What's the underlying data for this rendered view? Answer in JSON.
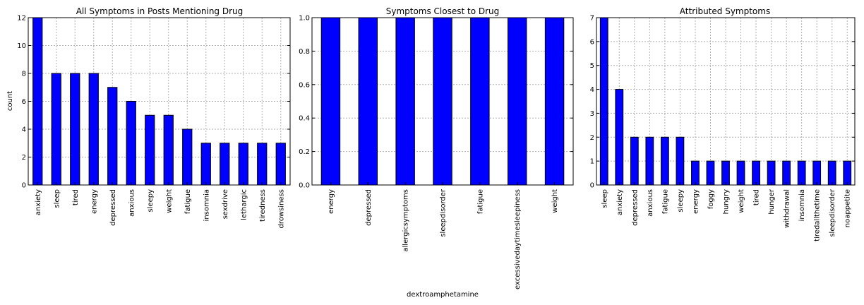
{
  "chart_data": [
    {
      "type": "bar",
      "title": "All Symptoms in Posts Mentioning Drug",
      "xlabel": "",
      "ylabel": "count",
      "ylim": [
        0,
        12
      ],
      "yticks": [
        0,
        2,
        4,
        6,
        8,
        10,
        12
      ],
      "ytick_labels": [
        "0",
        "2",
        "4",
        "6",
        "8",
        "10",
        "12"
      ],
      "grid": true,
      "bar_color": "#0000ff",
      "categories": [
        "anxiety",
        "sleep",
        "tired",
        "energy",
        "depressed",
        "anxious",
        "sleepy",
        "weight",
        "fatigue",
        "insomnia",
        "sexdrive",
        "lethargic",
        "tiredness",
        "drowsiness"
      ],
      "values": [
        12,
        8,
        8,
        8,
        7,
        6,
        5,
        5,
        4,
        3,
        3,
        3,
        3,
        3
      ]
    },
    {
      "type": "bar",
      "title": "Symptoms Closest to Drug",
      "xlabel": "dextroamphetamine",
      "ylabel": "",
      "ylim": [
        0,
        1
      ],
      "yticks": [
        0,
        0.2,
        0.4,
        0.6,
        0.8,
        1.0
      ],
      "ytick_labels": [
        "0.0",
        "0.2",
        "0.4",
        "0.6",
        "0.8",
        "1.0"
      ],
      "grid": true,
      "bar_color": "#0000ff",
      "categories": [
        "energy",
        "depressed",
        "allergicsymptoms",
        "sleepdisorder",
        "fatigue",
        "excessivedaytimesleepiness",
        "weight"
      ],
      "values": [
        1,
        1,
        1,
        1,
        1,
        1,
        1
      ]
    },
    {
      "type": "bar",
      "title": "Attributed Symptoms",
      "xlabel": "",
      "ylabel": "",
      "ylim": [
        0,
        7
      ],
      "yticks": [
        0,
        1,
        2,
        3,
        4,
        5,
        6,
        7
      ],
      "ytick_labels": [
        "0",
        "1",
        "2",
        "3",
        "4",
        "5",
        "6",
        "7"
      ],
      "grid": true,
      "bar_color": "#0000ff",
      "categories": [
        "sleep",
        "anxiety",
        "depressed",
        "anxious",
        "fatigue",
        "sleepy",
        "energy",
        "foggy",
        "hungry",
        "weight",
        "tired",
        "hunger",
        "withdrawal",
        "insomnia",
        "tiredallthetime",
        "sleepdisorder",
        "noappetite"
      ],
      "values": [
        7,
        4,
        2,
        2,
        2,
        2,
        1,
        1,
        1,
        1,
        1,
        1,
        1,
        1,
        1,
        1,
        1
      ]
    }
  ]
}
